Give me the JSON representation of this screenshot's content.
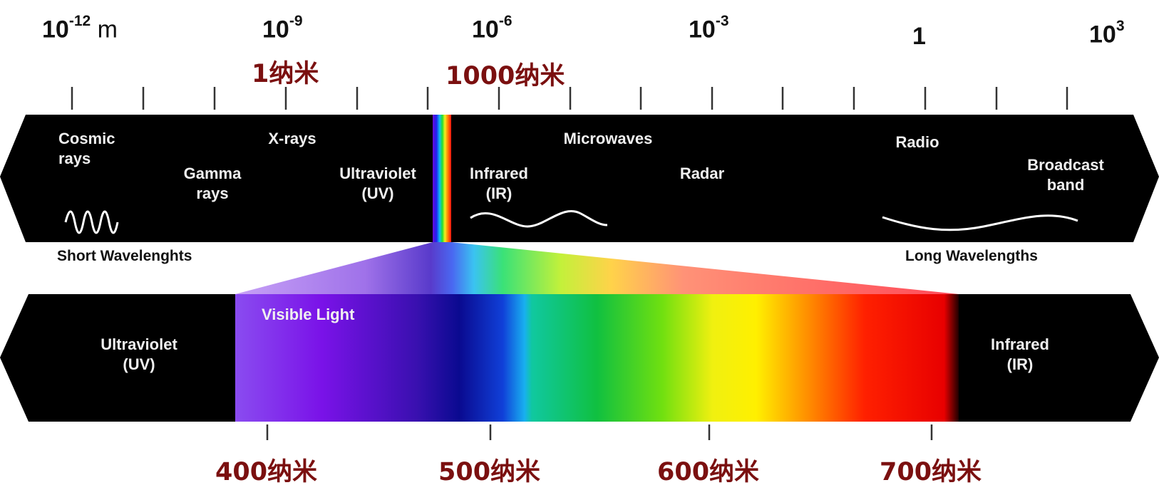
{
  "scale": {
    "labels": [
      {
        "base": "10",
        "exp": "-12",
        "unit": " m"
      },
      {
        "base": "10",
        "exp": "-9",
        "unit": ""
      },
      {
        "base": "10",
        "exp": "-6",
        "unit": ""
      },
      {
        "base": "10",
        "exp": "-3",
        "unit": ""
      },
      {
        "base": "1",
        "exp": "",
        "unit": ""
      },
      {
        "base": "10",
        "exp": "3",
        "unit": ""
      }
    ],
    "nm_labels": [
      "1纳米",
      "1000纳米"
    ]
  },
  "spectrum": {
    "bands": [
      {
        "text": "Cosmic\nrays"
      },
      {
        "text": "Gamma\nrays"
      },
      {
        "text": "X-rays"
      },
      {
        "text": "Ultraviolet\n(UV)"
      },
      {
        "text": "Infrared\n(IR)"
      },
      {
        "text": "Microwaves"
      },
      {
        "text": "Radar"
      },
      {
        "text": "Radio"
      },
      {
        "text": "Broadcast\nband"
      }
    ],
    "short_label": "Short Wavelenghts",
    "long_label": "Long Wavelengths"
  },
  "visible": {
    "title": "Visible Light",
    "left_band": "Ultraviolet\n(UV)",
    "right_band": "Infrared\n(IR)",
    "wavelength_labels": [
      "400纳米",
      "500纳米",
      "600纳米",
      "700纳米"
    ]
  },
  "colors": {
    "band_fill": "#000000",
    "label_red": "#7b1010",
    "band_text": "#f0f0f0"
  }
}
